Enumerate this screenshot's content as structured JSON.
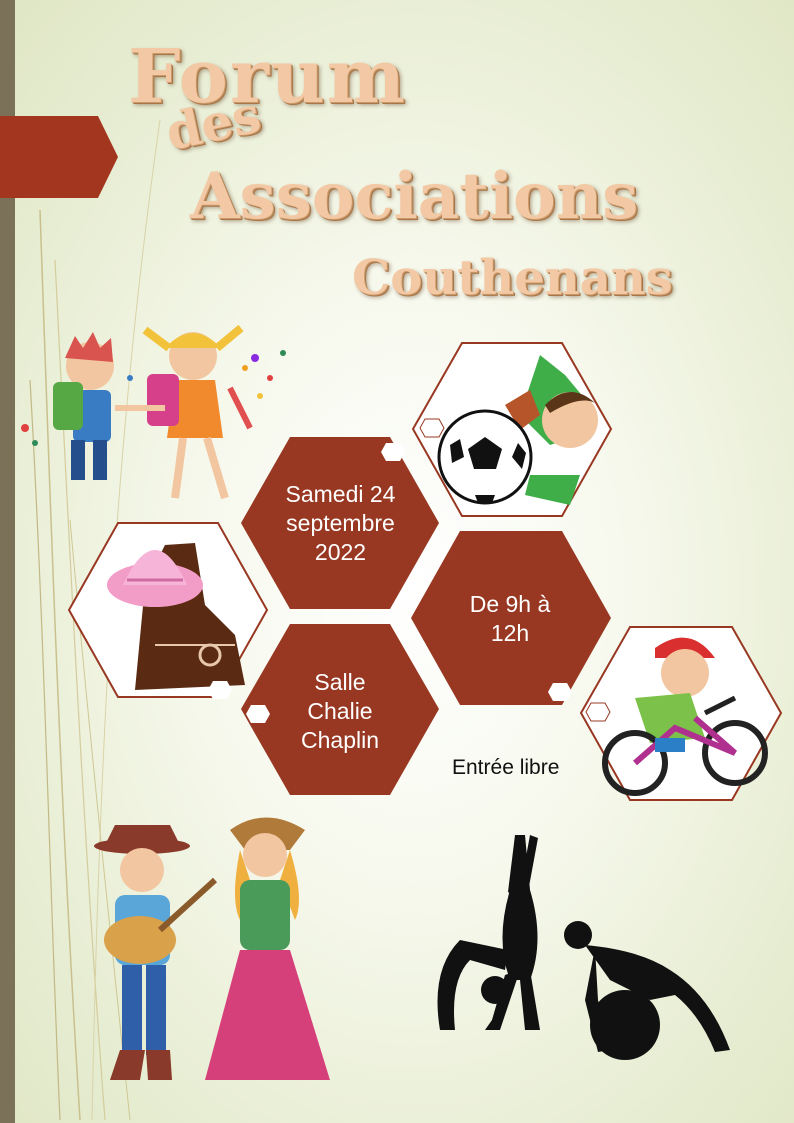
{
  "title": {
    "line1": "Forum",
    "line2": "des",
    "line3": "Associations",
    "line4": "Couthenans"
  },
  "event": {
    "date": "Samedi 24 septembre 2022",
    "time": "De 9h à 12h",
    "venue": "Salle Chalie Chaplin",
    "entry": "Entrée libre"
  },
  "colors": {
    "hex_fill": "#983822",
    "sidebar": "#7a7158",
    "title_text": "#f2c9a4"
  },
  "icons": [
    "kids-backpack-icon",
    "soccer-boy-icon",
    "cowboy-hat-boot-icon",
    "cyclist-boy-icon",
    "country-couple-icon",
    "gymnast-silhouette-icon"
  ]
}
